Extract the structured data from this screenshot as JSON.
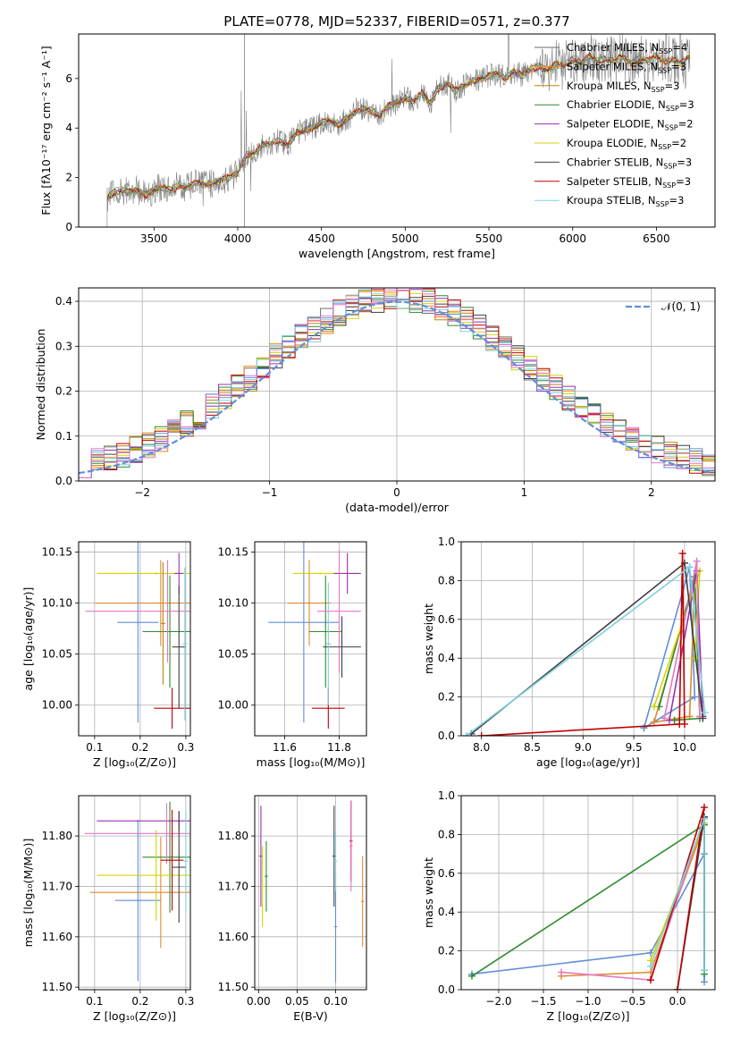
{
  "figure_title": "PLATE=0778, MJD=52337, FIBERID=0571, z=0.377",
  "palette": [
    "#6d6d6d",
    "#ff7f0e",
    "#b8860b",
    "#2e8b2e",
    "#9b30b0",
    "#d4d400",
    "#404040",
    "#c00000",
    "#7ecfdf",
    "#5f8fd9",
    "#e377c2",
    "#1f6feb",
    "#e08a2e"
  ],
  "model_colors": {
    "chabrier_miles": "#6d6d6d",
    "salpeter_miles": "#ff7f0e",
    "kroupa_miles": "#b8860b",
    "chabrier_elodie": "#2e8b2e",
    "salpeter_elodie": "#9b30b0",
    "kroupa_elodie": "#d4d400",
    "chabrier_stelib": "#404040",
    "salpeter_stelib": "#c00000",
    "kroupa_stelib": "#7ecfdf"
  },
  "chart_data": [
    {
      "id": "spectrum",
      "type": "line",
      "xlabel": "wavelength [Angstrom, rest frame]",
      "ylabel": "Flux [fλ10⁻¹⁷ erg cm⁻² s⁻¹ A⁻¹]",
      "xlim": [
        3050,
        6850
      ],
      "ylim": [
        0,
        7.8
      ],
      "xticks": [
        3500,
        4000,
        4500,
        5000,
        5500,
        6000,
        6500
      ],
      "yticks": [
        0,
        2,
        4,
        6
      ],
      "legend_position": "top-right",
      "legend": [
        {
          "label": "Chabrier MILES, N",
          "sub": "SSP",
          "suffix": "=4"
        },
        {
          "label": "Salpeter MILES, N",
          "sub": "SSP",
          "suffix": "=3"
        },
        {
          "label": "Kroupa MILES, N",
          "sub": "SSP",
          "suffix": "=3"
        },
        {
          "label": "Chabrier ELODIE, N",
          "sub": "SSP",
          "suffix": "=3"
        },
        {
          "label": "Salpeter ELODIE, N",
          "sub": "SSP",
          "suffix": "=2"
        },
        {
          "label": "Kroupa ELODIE, N",
          "sub": "SSP",
          "suffix": "=2"
        },
        {
          "label": "Chabrier STELIB, N",
          "sub": "SSP",
          "suffix": "=3"
        },
        {
          "label": "Salpeter STELIB, N",
          "sub": "SSP",
          "suffix": "=3"
        },
        {
          "label": "Kroupa STELIB, N",
          "sub": "SSP",
          "suffix": "=3"
        }
      ],
      "model_x": [
        3220,
        3260,
        3300,
        3350,
        3400,
        3450,
        3500,
        3550,
        3600,
        3650,
        3700,
        3750,
        3800,
        3850,
        3900,
        3950,
        4000,
        4050,
        4100,
        4150,
        4200,
        4250,
        4300,
        4350,
        4400,
        4450,
        4500,
        4550,
        4600,
        4650,
        4700,
        4750,
        4800,
        4850,
        4900,
        4950,
        5000,
        5050,
        5100,
        5150,
        5200,
        5250,
        5300,
        5350,
        5400,
        5450,
        5500,
        5550,
        5600,
        5650,
        5700,
        5750,
        5800,
        5850,
        5900,
        5950,
        6000,
        6050,
        6100,
        6150,
        6200,
        6250,
        6300,
        6350,
        6400,
        6450,
        6500,
        6550,
        6600,
        6650,
        6700
      ],
      "model_y": [
        1.2,
        1.4,
        1.5,
        1.4,
        1.5,
        1.3,
        1.5,
        1.6,
        1.5,
        1.7,
        1.6,
        1.8,
        1.7,
        1.8,
        1.9,
        2.0,
        2.2,
        2.9,
        3.0,
        3.3,
        3.4,
        3.5,
        3.3,
        3.8,
        3.9,
        4.0,
        4.2,
        4.3,
        4.1,
        4.4,
        4.6,
        4.8,
        4.7,
        4.5,
        4.9,
        5.0,
        5.2,
        5.1,
        5.4,
        5.0,
        5.6,
        5.8,
        5.5,
        5.7,
        5.9,
        6.0,
        6.1,
        6.2,
        6.0,
        6.3,
        6.1,
        6.4,
        6.5,
        6.3,
        6.6,
        6.5,
        6.8,
        6.6,
        6.9,
        6.7,
        6.8,
        6.7,
        6.9,
        6.6,
        6.8,
        6.7,
        6.9,
        6.7,
        6.8,
        6.6,
        6.9
      ]
    },
    {
      "id": "residual_hist",
      "type": "line",
      "xlabel": "(data-model)/error",
      "ylabel": "Normed distribution",
      "xlim": [
        -2.5,
        2.5
      ],
      "ylim": [
        0,
        0.43
      ],
      "xticks": [
        -2,
        -1,
        0,
        1,
        2
      ],
      "yticks": [
        0.0,
        0.1,
        0.2,
        0.3,
        0.4
      ],
      "grid": true,
      "legend_position": "top-right",
      "normal_label": "𝒩(0, 1)",
      "bin_width": 0.1
    },
    {
      "id": "age_vs_Z",
      "type": "scatter",
      "xlabel": "Z [log₁₀(Z/Z⊙)]",
      "ylabel": "age  [log₁₀(age/yr)]",
      "xlim": [
        0.065,
        0.31
      ],
      "ylim": [
        9.97,
        10.16
      ],
      "xticks": [
        0.1,
        0.2,
        0.3
      ],
      "yticks": [
        10.0,
        10.05,
        10.1,
        10.15
      ],
      "grid": true,
      "points": [
        {
          "x": 0.195,
          "y": 10.081,
          "xerr": 0.045,
          "yerr": 0.098,
          "c": "#5f8fd9"
        },
        {
          "x": 0.245,
          "y": 10.1,
          "xerr": 0.145,
          "yerr": 0.042,
          "c": "#e08a2e"
        },
        {
          "x": 0.265,
          "y": 10.072,
          "xerr": 0.06,
          "yerr": 0.055,
          "c": "#2e8b2e"
        },
        {
          "x": 0.235,
          "y": 10.129,
          "xerr": 0.13,
          "yerr": 0.001,
          "c": "#d4d400"
        },
        {
          "x": 0.285,
          "y": 10.129,
          "xerr": 0.01,
          "yerr": 0.02,
          "c": "#9b30b0"
        },
        {
          "x": 0.26,
          "y": 10.092,
          "xerr": 0.18,
          "yerr": 0.05,
          "c": "#e377c2"
        },
        {
          "x": 0.285,
          "y": 10.057,
          "xerr": 0.015,
          "yerr": 0.06,
          "c": "#404040"
        },
        {
          "x": 0.27,
          "y": 9.997,
          "xerr": 0.04,
          "yerr": 0.02,
          "c": "#c00000"
        },
        {
          "x": 0.298,
          "y": 10.06,
          "xerr": 0.005,
          "yerr": 0.075,
          "c": "#7ecfdf"
        },
        {
          "x": 0.25,
          "y": 10.08,
          "xerr": 0.005,
          "yerr": 0.06,
          "c": "#b8860b"
        }
      ]
    },
    {
      "id": "age_vs_mass",
      "type": "scatter",
      "xlabel": "mass [log₁₀(M/M⊙)]",
      "ylabel": "",
      "xlim": [
        11.49,
        11.9
      ],
      "ylim": [
        9.97,
        10.16
      ],
      "xticks": [
        11.6,
        11.8
      ],
      "yticks": [
        10.0,
        10.05,
        10.1,
        10.15
      ],
      "grid": true,
      "points": [
        {
          "x": 11.67,
          "y": 10.081,
          "xerr": 0.13,
          "yerr": 0.098,
          "c": "#5f8fd9"
        },
        {
          "x": 11.69,
          "y": 10.1,
          "xerr": 0.08,
          "yerr": 0.042,
          "c": "#e08a2e"
        },
        {
          "x": 11.75,
          "y": 10.072,
          "xerr": 0.06,
          "yerr": 0.055,
          "c": "#2e8b2e"
        },
        {
          "x": 11.73,
          "y": 10.129,
          "xerr": 0.1,
          "yerr": 0.001,
          "c": "#d4d400"
        },
        {
          "x": 11.83,
          "y": 10.129,
          "xerr": 0.05,
          "yerr": 0.02,
          "c": "#9b30b0"
        },
        {
          "x": 11.8,
          "y": 10.092,
          "xerr": 0.08,
          "yerr": 0.06,
          "c": "#e377c2"
        },
        {
          "x": 11.81,
          "y": 10.057,
          "xerr": 0.07,
          "yerr": 0.03,
          "c": "#404040"
        },
        {
          "x": 11.76,
          "y": 9.997,
          "xerr": 0.06,
          "yerr": 0.02,
          "c": "#c00000"
        },
        {
          "x": 11.76,
          "y": 10.06,
          "xerr": 0.01,
          "yerr": 0.06,
          "c": "#7ecfdf"
        }
      ]
    },
    {
      "id": "weight_vs_age",
      "type": "line",
      "xlabel": "age  [log₁₀(age/yr)]",
      "ylabel": "mass weight",
      "xlim": [
        7.8,
        10.3
      ],
      "ylim": [
        0,
        1.0
      ],
      "xticks": [
        8.0,
        8.5,
        9.0,
        9.5,
        10.0
      ],
      "yticks": [
        0.0,
        0.2,
        0.4,
        0.6,
        0.8,
        1.0
      ],
      "grid": true,
      "series": [
        {
          "c": "#5f8fd9",
          "pts": [
            [
              9.6,
              0.04
            ],
            [
              10.05,
              0.87
            ],
            [
              10.1,
              0.2
            ],
            [
              9.6,
              0.04
            ]
          ]
        },
        {
          "c": "#e08a2e",
          "pts": [
            [
              9.7,
              0.07
            ],
            [
              10.1,
              0.8
            ],
            [
              10.05,
              0.1
            ],
            [
              9.7,
              0.07
            ]
          ]
        },
        {
          "c": "#2e8b2e",
          "pts": [
            [
              9.75,
              0.15
            ],
            [
              10.1,
              0.82
            ],
            [
              10.15,
              0.09
            ],
            [
              9.9,
              0.08
            ]
          ]
        },
        {
          "c": "#d4d400",
          "pts": [
            [
              9.7,
              0.15
            ],
            [
              10.15,
              0.85
            ],
            [
              10.1,
              0.4
            ]
          ]
        },
        {
          "c": "#9b30b0",
          "pts": [
            [
              9.85,
              0.08
            ],
            [
              10.12,
              0.85
            ],
            [
              10.18,
              0.1
            ]
          ]
        },
        {
          "c": "#e377c2",
          "pts": [
            [
              9.8,
              0.09
            ],
            [
              10.12,
              0.9
            ],
            [
              10.15,
              0.1
            ]
          ]
        },
        {
          "c": "#404040",
          "pts": [
            [
              7.9,
              0.01
            ],
            [
              10.0,
              0.89
            ],
            [
              10.18,
              0.09
            ]
          ]
        },
        {
          "c": "#c00000",
          "pts": [
            [
              8.0,
              0.0
            ],
            [
              9.95,
              0.06
            ],
            [
              9.98,
              0.94
            ],
            [
              10.0,
              0.06
            ]
          ]
        },
        {
          "c": "#7ecfdf",
          "pts": [
            [
              7.85,
              0.0
            ],
            [
              10.05,
              0.87
            ],
            [
              10.2,
              0.12
            ]
          ]
        }
      ]
    },
    {
      "id": "mass_vs_Z",
      "type": "scatter",
      "xlabel": "Z [log₁₀(Z/Z⊙)]",
      "ylabel": "mass [log₁₀(M/M⊙)]",
      "xlim": [
        0.065,
        0.31
      ],
      "ylim": [
        11.495,
        11.88
      ],
      "xticks": [
        0.1,
        0.2,
        0.3
      ],
      "yticks": [
        11.5,
        11.6,
        11.7,
        11.8
      ],
      "grid": true,
      "points": [
        {
          "x": 0.195,
          "y": 11.672,
          "xerr": 0.05,
          "yerr": 0.16,
          "c": "#5f8fd9"
        },
        {
          "x": 0.245,
          "y": 11.688,
          "xerr": 0.155,
          "yerr": 0.11,
          "c": "#e08a2e"
        },
        {
          "x": 0.265,
          "y": 11.758,
          "xerr": 0.06,
          "yerr": 0.11,
          "c": "#2e8b2e"
        },
        {
          "x": 0.235,
          "y": 11.722,
          "xerr": 0.13,
          "yerr": 0.09,
          "c": "#d4d400"
        },
        {
          "x": 0.285,
          "y": 11.83,
          "xerr": 0.18,
          "yerr": 0.02,
          "c": "#9b30b0"
        },
        {
          "x": 0.258,
          "y": 11.805,
          "xerr": 0.18,
          "yerr": 0.06,
          "c": "#e377c2"
        },
        {
          "x": 0.285,
          "y": 11.738,
          "xerr": 0.015,
          "yerr": 0.11,
          "c": "#404040"
        },
        {
          "x": 0.27,
          "y": 11.752,
          "xerr": 0.025,
          "yerr": 0.1,
          "c": "#c00000"
        },
        {
          "x": 0.3,
          "y": 11.75,
          "xerr": 0.005,
          "yerr": 0.1,
          "c": "#7ecfdf"
        }
      ]
    },
    {
      "id": "mass_vs_ebv",
      "type": "scatter",
      "xlabel": "E(B-V)",
      "ylabel": "",
      "xlim": [
        -0.005,
        0.14
      ],
      "ylim": [
        11.495,
        11.88
      ],
      "xticks": [
        0.0,
        0.05,
        0.1
      ],
      "yticks": [
        11.5,
        11.6,
        11.7,
        11.8
      ],
      "grid": true,
      "points": [
        {
          "x": 0.003,
          "y": 11.76,
          "xerr": 0.002,
          "yerr": 0.1,
          "c": "#9b30b0"
        },
        {
          "x": 0.005,
          "y": 11.7,
          "xerr": 0.002,
          "yerr": 0.08,
          "c": "#d4d400"
        },
        {
          "x": 0.01,
          "y": 11.72,
          "xerr": 0.002,
          "yerr": 0.07,
          "c": "#2e8b2e"
        },
        {
          "x": 0.098,
          "y": 11.76,
          "xerr": 0.002,
          "yerr": 0.1,
          "c": "#404040"
        },
        {
          "x": 0.1,
          "y": 11.62,
          "xerr": 0.002,
          "yerr": 0.11,
          "c": "#5f8fd9"
        },
        {
          "x": 0.1,
          "y": 11.75,
          "xerr": 0.002,
          "yerr": 0.06,
          "c": "#7ecfdf"
        },
        {
          "x": 0.12,
          "y": 11.79,
          "xerr": 0.002,
          "yerr": 0.08,
          "c": "#c00000"
        },
        {
          "x": 0.12,
          "y": 11.78,
          "xerr": 0.002,
          "yerr": 0.09,
          "c": "#e377c2"
        },
        {
          "x": 0.135,
          "y": 11.67,
          "xerr": 0.002,
          "yerr": 0.09,
          "c": "#e08a2e"
        }
      ]
    },
    {
      "id": "weight_vs_Z",
      "type": "line",
      "xlabel": "Z [log₁₀(Z/Z⊙)]",
      "ylabel": "mass weight",
      "xlim": [
        -2.42,
        0.42
      ],
      "ylim": [
        0,
        1.0
      ],
      "xticks": [
        -2.0,
        -1.5,
        -1.0,
        -0.5,
        0.0
      ],
      "yticks": [
        0.0,
        0.2,
        0.4,
        0.6,
        0.8,
        1.0
      ],
      "grid": true,
      "series": [
        {
          "c": "#5f8fd9",
          "pts": [
            [
              -2.3,
              0.08
            ],
            [
              -0.3,
              0.19
            ],
            [
              0.3,
              0.7
            ],
            [
              0.3,
              0.04
            ]
          ]
        },
        {
          "c": "#e08a2e",
          "pts": [
            [
              -1.3,
              0.07
            ],
            [
              -0.3,
              0.09
            ],
            [
              0.3,
              0.85
            ]
          ]
        },
        {
          "c": "#2e8b2e",
          "pts": [
            [
              -2.3,
              0.07
            ],
            [
              0.3,
              0.85
            ],
            [
              0.3,
              0.08
            ]
          ]
        },
        {
          "c": "#d4d400",
          "pts": [
            [
              -0.3,
              0.15
            ],
            [
              0.3,
              0.86
            ]
          ]
        },
        {
          "c": "#e377c2",
          "pts": [
            [
              -1.3,
              0.09
            ],
            [
              -0.3,
              0.05
            ],
            [
              0.3,
              0.89
            ]
          ]
        },
        {
          "c": "#404040",
          "pts": [
            [
              0.0,
              0.0
            ],
            [
              0.3,
              0.89
            ],
            [
              0.3,
              0.1
            ]
          ]
        },
        {
          "c": "#c00000",
          "pts": [
            [
              -0.3,
              0.05
            ],
            [
              0.3,
              0.94
            ],
            [
              0.0,
              0.0
            ]
          ]
        },
        {
          "c": "#7ecfdf",
          "pts": [
            [
              -0.3,
              0.12
            ],
            [
              0.3,
              0.88
            ],
            [
              0.3,
              0.1
            ]
          ]
        }
      ]
    }
  ]
}
